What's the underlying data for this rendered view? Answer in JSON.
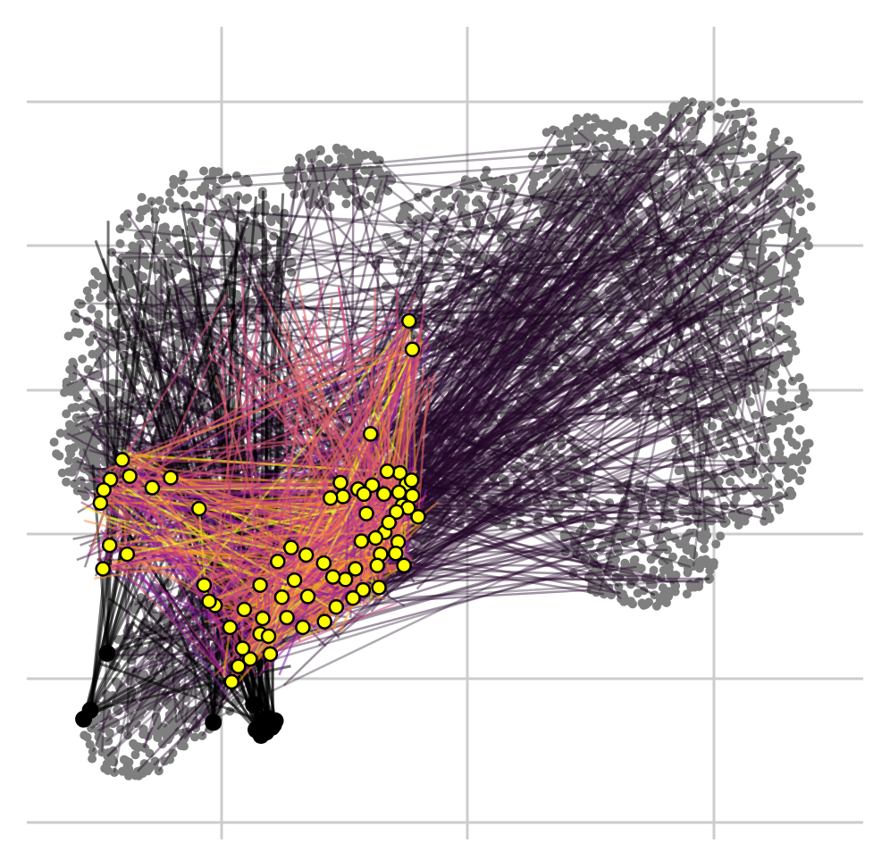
{
  "chart_data": {
    "type": "scatter",
    "title": "",
    "xlabel": "",
    "ylabel": "",
    "xlim": [
      0,
      100
    ],
    "ylim": [
      0,
      100
    ],
    "grid": true,
    "colors": {
      "background_points": "#7f7f7f",
      "edges_far": "#2a0a2e",
      "edges_mid": "#7b1fa2",
      "edges_near": "#e86a1c",
      "edges_bright": "#fca50a",
      "highlight_points": "#ffff00",
      "anchor_points": "#000000",
      "grid": "#cccccc"
    },
    "colormap": "inferno",
    "highlight_points": [
      [
        45.7,
        63.8
      ],
      [
        46.1,
        60.3
      ],
      [
        41.1,
        49.9
      ],
      [
        44.6,
        45.1
      ],
      [
        42.7,
        42.5
      ],
      [
        41.3,
        43.6
      ],
      [
        45.4,
        43.7
      ],
      [
        44.5,
        42.7
      ],
      [
        46.1,
        42.3
      ],
      [
        44.9,
        41.1
      ],
      [
        45.6,
        40.8
      ],
      [
        44.2,
        40.3
      ],
      [
        39.6,
        43.1
      ],
      [
        37.5,
        43.9
      ],
      [
        37.8,
        42.2
      ],
      [
        36.3,
        42.0
      ],
      [
        40.3,
        42.5
      ],
      [
        42.8,
        37.8
      ],
      [
        41.7,
        37.1
      ],
      [
        40.0,
        36.7
      ],
      [
        42.3,
        35.1
      ],
      [
        41.9,
        33.7
      ],
      [
        44.4,
        36.6
      ],
      [
        44.1,
        35.2
      ],
      [
        45.1,
        33.7
      ],
      [
        42.1,
        31.0
      ],
      [
        40.2,
        30.7
      ],
      [
        38.1,
        32.0
      ],
      [
        39.0,
        29.7
      ],
      [
        35.5,
        34.0
      ],
      [
        36.6,
        32.3
      ],
      [
        33.4,
        35.0
      ],
      [
        31.6,
        35.9
      ],
      [
        30.0,
        34.2
      ],
      [
        32.0,
        31.9
      ],
      [
        30.5,
        29.8
      ],
      [
        31.1,
        27.3
      ],
      [
        33.0,
        26.1
      ],
      [
        28.2,
        27.2
      ],
      [
        27.9,
        25.3
      ],
      [
        29.1,
        22.8
      ],
      [
        26.7,
        22.2
      ],
      [
        25.3,
        21.3
      ],
      [
        25.8,
        23.5
      ],
      [
        24.5,
        19.4
      ],
      [
        26.0,
        28.3
      ],
      [
        27.9,
        31.3
      ],
      [
        24.3,
        26.1
      ],
      [
        22.5,
        28.8
      ],
      [
        21.2,
        31.3
      ],
      [
        20.6,
        40.7
      ],
      [
        17.2,
        44.5
      ],
      [
        15.0,
        43.3
      ],
      [
        12.3,
        44.7
      ],
      [
        11.4,
        46.7
      ],
      [
        10.0,
        44.3
      ],
      [
        9.2,
        43.0
      ],
      [
        12.0,
        35.1
      ],
      [
        9.9,
        36.2
      ],
      [
        9.1,
        33.3
      ],
      [
        8.8,
        41.4
      ],
      [
        21.8,
        29.3
      ],
      [
        28.9,
        25.0
      ],
      [
        33.6,
        29.9
      ],
      [
        35.6,
        26.8
      ],
      [
        37.0,
        28.6
      ],
      [
        39.3,
        33.3
      ],
      [
        40.6,
        40.1
      ],
      [
        43.3,
        39.0
      ],
      [
        46.8,
        39.7
      ],
      [
        43.1,
        45.3
      ],
      [
        46.0,
        44.2
      ]
    ],
    "anchor_points": [
      [
        9.6,
        22.9
      ],
      [
        6.8,
        14.8
      ],
      [
        7.6,
        15.9
      ],
      [
        22.3,
        14.4
      ],
      [
        27.1,
        16.6
      ],
      [
        27.4,
        13.5
      ],
      [
        28.0,
        12.8
      ],
      [
        28.6,
        13.2
      ],
      [
        29.3,
        13.8
      ],
      [
        29.5,
        14.1
      ],
      [
        28.8,
        14.9
      ],
      [
        28.2,
        14.2
      ],
      [
        29.7,
        14.6
      ]
    ]
  }
}
